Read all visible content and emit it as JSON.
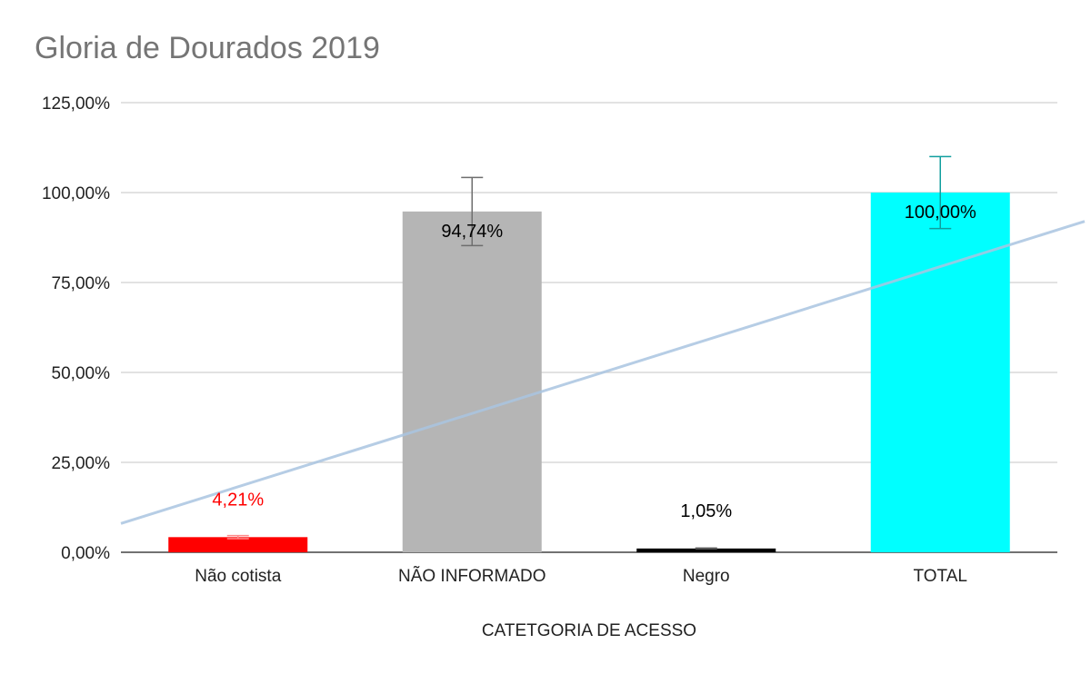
{
  "chart_data": {
    "type": "bar",
    "title": "Gloria de Dourados 2019",
    "xlabel": "CATETGORIA DE ACESSO",
    "ylabel": "",
    "ylim": [
      0,
      125
    ],
    "yticks": [
      "0,00%",
      "25,00%",
      "50,00%",
      "75,00%",
      "100,00%",
      "125,00%"
    ],
    "ytick_values": [
      0,
      25,
      50,
      75,
      100,
      125
    ],
    "grid": true,
    "categories": [
      "Não cotista",
      "NÃO INFORMADO",
      "Negro",
      "TOTAL"
    ],
    "values": [
      4.21,
      94.74,
      1.05,
      100.0
    ],
    "data_labels": [
      "4,21%",
      "94,74%",
      "1,05%",
      "100,00%"
    ],
    "error_bars": [
      0.42,
      9.47,
      0.11,
      10.0
    ],
    "bar_colors": [
      "#ff0000",
      "#b5b5b5",
      "#000000",
      "#00ffff"
    ],
    "label_colors": [
      "#ff0000",
      "#000000",
      "#000000",
      "#000000"
    ],
    "error_colors": [
      "#ff8a8a",
      "#6e6e6e",
      "#555555",
      "#109e9e"
    ],
    "trendline": {
      "type": "linear",
      "color": "#a9c4e0",
      "y_start": 8,
      "y_end": 92
    }
  }
}
